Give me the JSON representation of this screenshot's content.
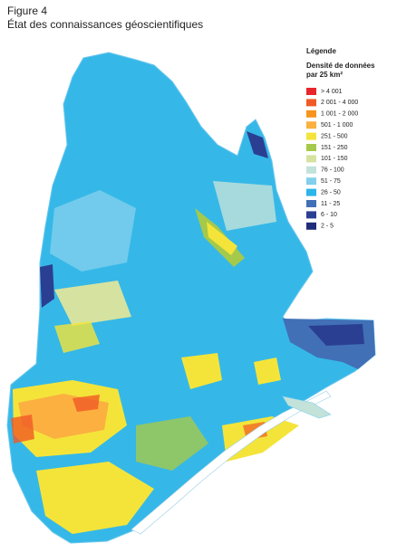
{
  "header": {
    "figure": "Figure 4",
    "title": "État des connaissances géoscientifiques"
  },
  "legend": {
    "title": "Légende",
    "subtitle_lines": [
      "Densité de données",
      "par 25 km²"
    ],
    "items": [
      {
        "label": "> 4 001",
        "color": "#e8262a"
      },
      {
        "label": "2 001 - 4 000",
        "color": "#f15a24"
      },
      {
        "label": "1 001 - 2 000",
        "color": "#f7941d"
      },
      {
        "label": "501 - 1 000",
        "color": "#fbb040"
      },
      {
        "label": "251 - 500",
        "color": "#f4e43a"
      },
      {
        "label": "151 - 250",
        "color": "#a5c94a"
      },
      {
        "label": "101 - 150",
        "color": "#d6e3a0"
      },
      {
        "label": "76 - 100",
        "color": "#c3e2d9"
      },
      {
        "label": "51 - 75",
        "color": "#82d0ec"
      },
      {
        "label": "26 - 50",
        "color": "#2bb5e8"
      },
      {
        "label": "11 - 25",
        "color": "#4170b6"
      },
      {
        "label": "6 - 10",
        "color": "#2b3f92"
      },
      {
        "label": "2 - 5",
        "color": "#1f2d7a"
      }
    ]
  }
}
